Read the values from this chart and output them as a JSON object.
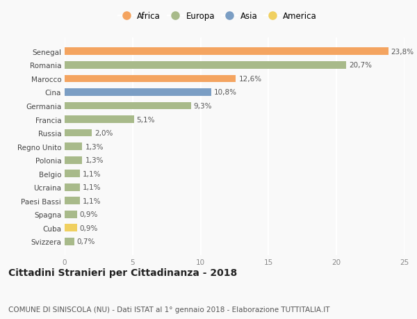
{
  "countries": [
    "Svizzera",
    "Cuba",
    "Spagna",
    "Paesi Bassi",
    "Ucraina",
    "Belgio",
    "Polonia",
    "Regno Unito",
    "Russia",
    "Francia",
    "Germania",
    "Cina",
    "Marocco",
    "Romania",
    "Senegal"
  ],
  "values": [
    0.7,
    0.9,
    0.9,
    1.1,
    1.1,
    1.1,
    1.3,
    1.3,
    2.0,
    5.1,
    9.3,
    10.8,
    12.6,
    20.7,
    23.8
  ],
  "labels": [
    "0,7%",
    "0,9%",
    "0,9%",
    "1,1%",
    "1,1%",
    "1,1%",
    "1,3%",
    "1,3%",
    "2,0%",
    "5,1%",
    "9,3%",
    "10,8%",
    "12,6%",
    "20,7%",
    "23,8%"
  ],
  "continents": [
    "Europa",
    "America",
    "Europa",
    "Europa",
    "Europa",
    "Europa",
    "Europa",
    "Europa",
    "Europa",
    "Europa",
    "Europa",
    "Asia",
    "Africa",
    "Europa",
    "Africa"
  ],
  "colors": {
    "Africa": "#F4A460",
    "Europa": "#A8BA8A",
    "Asia": "#7B9EC4",
    "America": "#F0D060"
  },
  "legend_order": [
    "Africa",
    "Europa",
    "Asia",
    "America"
  ],
  "xlim": [
    0,
    25
  ],
  "xticks": [
    0,
    5,
    10,
    15,
    20,
    25
  ],
  "title": "Cittadini Stranieri per Cittadinanza - 2018",
  "subtitle": "COMUNE DI SINISCOLA (NU) - Dati ISTAT al 1° gennaio 2018 - Elaborazione TUTTITALIA.IT",
  "background_color": "#f9f9f9",
  "grid_color": "#ffffff",
  "bar_height": 0.55,
  "label_fontsize": 7.5,
  "title_fontsize": 10,
  "subtitle_fontsize": 7.5,
  "tick_fontsize": 7.5,
  "legend_fontsize": 8.5
}
